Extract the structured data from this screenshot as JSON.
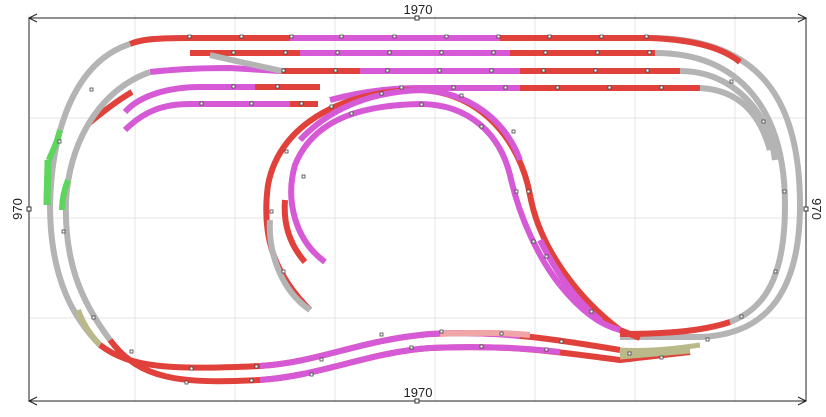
{
  "dimensions": {
    "top_width": "1970",
    "bottom_width": "1970",
    "left_height": "970",
    "right_height": "970"
  },
  "track_colors": {
    "red": "#e0413a",
    "magenta": "#d65ad6",
    "gray": "#b4b4b4",
    "green": "#5ed65e",
    "olive": "#b9b98a",
    "pink": "#f0a6a6"
  }
}
